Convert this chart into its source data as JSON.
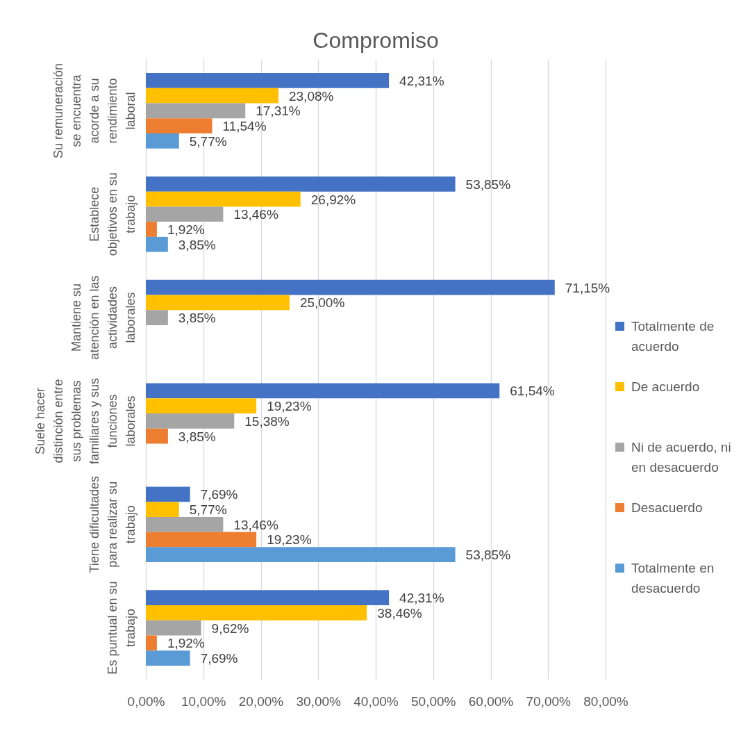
{
  "chart_data": {
    "type": "bar",
    "orientation": "horizontal",
    "title": "Compromiso",
    "categories": [
      "Su remuneración se encuentra acorde a su rendimiento laboral",
      "Establece objetivos en su trabajo",
      "Mantiene su atención en las actividades laborales",
      "Suele hacer distinción entre sus problemas familiares y sus funciones laborales",
      "Tiene dificultades para realizar su trabajo",
      "Es puntual en su trabajo"
    ],
    "series": [
      {
        "name": "Totalmente de acuerdo",
        "color": "#4472c4",
        "values": [
          42.31,
          53.85,
          71.15,
          61.54,
          7.69,
          42.31
        ],
        "value_labels": [
          "42,31%",
          "53,85%",
          "71,15%",
          "61,54%",
          "7,69%",
          "42,31%"
        ]
      },
      {
        "name": "De acuerdo",
        "color": "#ffc000",
        "values": [
          23.08,
          26.92,
          25.0,
          19.23,
          5.77,
          38.46
        ],
        "value_labels": [
          "23,08%",
          "26,92%",
          "25,00%",
          "19,23%",
          "5,77%",
          "38,46%"
        ]
      },
      {
        "name": "Ni de acuerdo, ni en desacuerdo",
        "color": "#a5a5a5",
        "values": [
          17.31,
          13.46,
          3.85,
          15.38,
          13.46,
          9.62
        ],
        "value_labels": [
          "17,31%",
          "13,46%",
          "3,85%",
          "15,38%",
          "13,46%",
          "9,62%"
        ]
      },
      {
        "name": "Desacuerdo",
        "color": "#ed7d31",
        "values": [
          11.54,
          1.92,
          null,
          3.85,
          19.23,
          1.92
        ],
        "value_labels": [
          "11,54%",
          "1,92%",
          null,
          "3,85%",
          "19,23%",
          "1,92%"
        ]
      },
      {
        "name": "Totalmente en desacuerdo",
        "color": "#5b9bd5",
        "values": [
          5.77,
          3.85,
          null,
          null,
          53.85,
          7.69
        ],
        "value_labels": [
          "5,77%",
          "3,85%",
          null,
          null,
          "53,85%",
          "7,69%"
        ]
      }
    ],
    "xlim": [
      0,
      80
    ],
    "xticks": [
      {
        "value": 0,
        "label": "0,00%"
      },
      {
        "value": 10,
        "label": "10,00%"
      },
      {
        "value": 20,
        "label": "20,00%"
      },
      {
        "value": 30,
        "label": "30,00%"
      },
      {
        "value": 40,
        "label": "40,00%"
      },
      {
        "value": 50,
        "label": "50,00%"
      },
      {
        "value": 60,
        "label": "60,00%"
      },
      {
        "value": 70,
        "label": "70,00%"
      },
      {
        "value": 80,
        "label": "80,00%"
      }
    ],
    "grid": "x",
    "legend": "right"
  }
}
